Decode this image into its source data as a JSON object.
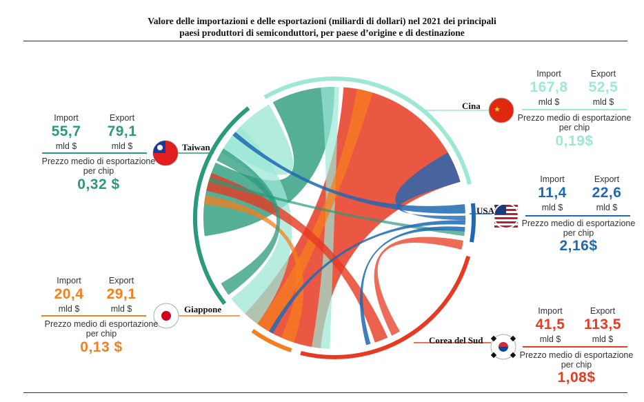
{
  "title_line1": "Valore delle importazioni e delle esportazioni (miliardi di dollari) nel 2021 dei principali",
  "title_line2": "paesi produttori di semiconduttori, per paese d’origine e di destinazione",
  "labels": {
    "import": "Import",
    "export": "Export",
    "unit": "mld $",
    "price_line1": "Prezzo medio di esportazione",
    "price_line2": "per chip"
  },
  "countries": {
    "taiwan": {
      "name": "Taiwan",
      "import": "55,7",
      "export": "79,1",
      "price": "0,32 $",
      "color": "#2a9a7c"
    },
    "cina": {
      "name": "Cina",
      "import": "167,8",
      "export": "52,5",
      "price": "0,19$",
      "color": "#9de7d5"
    },
    "usa": {
      "name": "USA",
      "import": "11,4",
      "export": "22,6",
      "price": "2,16$",
      "color": "#1f68b3"
    },
    "giappone": {
      "name": "Giappone",
      "import": "20,4",
      "export": "29,1",
      "price": "0,13 $",
      "color": "#f57e1e"
    },
    "corea": {
      "name": "Corea del Sud",
      "import": "41,5",
      "export": "113,5",
      "price": "1,08$",
      "color": "#e63a22"
    }
  },
  "chart_data": {
    "type": "chord",
    "title": "Valore delle importazioni e delle esportazioni (miliardi di dollari) nel 2021 dei principali paesi produttori di semiconduttori, per paese d’origine e di destinazione",
    "nodes": [
      "Cina",
      "USA",
      "Corea del Sud",
      "Giappone",
      "Taiwan"
    ],
    "series": [
      {
        "name": "Taiwan",
        "import": 55.7,
        "export": 79.1,
        "avg_export_price_usd": 0.32
      },
      {
        "name": "Cina",
        "import": 167.8,
        "export": 52.5,
        "avg_export_price_usd": 0.19
      },
      {
        "name": "USA",
        "import": 11.4,
        "export": 22.6,
        "avg_export_price_usd": 2.16
      },
      {
        "name": "Giappone",
        "import": 20.4,
        "export": 29.1,
        "avg_export_price_usd": 0.13
      },
      {
        "name": "Corea del Sud",
        "import": 41.5,
        "export": 113.5,
        "avg_export_price_usd": 1.08
      }
    ],
    "unit": "miliardi di dollari"
  }
}
